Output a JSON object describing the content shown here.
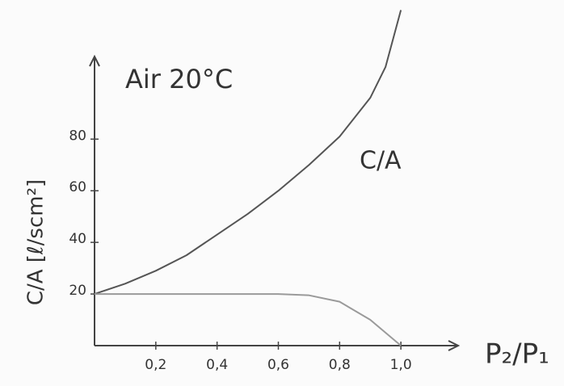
{
  "chart_data": {
    "type": "line",
    "title": "Air 20°C",
    "x_label": "P₂/P₁",
    "y_label": "C/A [ℓ/scm²]",
    "x": [
      0,
      0.1,
      0.2,
      0.3,
      0.4,
      0.5,
      0.6,
      0.7,
      0.8,
      0.9,
      0.95,
      1.0
    ],
    "series": [
      {
        "name": "C/A",
        "color": "#555555",
        "values": [
          20,
          24,
          29,
          35,
          43,
          51,
          60,
          70,
          81,
          96,
          108,
          130
        ]
      },
      {
        "color": "#9a9a9a",
        "values": [
          20,
          20,
          20,
          20,
          20,
          20,
          20,
          19.5,
          17,
          10,
          5,
          0
        ]
      }
    ],
    "xlim": [
      0,
      1.15
    ],
    "ylim": [
      0,
      112
    ],
    "xticks": [
      {
        "value": 0.2,
        "label": "0,2"
      },
      {
        "value": 0.4,
        "label": "0,4"
      },
      {
        "value": 0.6,
        "label": "0,6"
      },
      {
        "value": 0.8,
        "label": "0,8"
      },
      {
        "value": 1.0,
        "label": "1,0"
      }
    ],
    "yticks": [
      20,
      40,
      60,
      80
    ]
  }
}
